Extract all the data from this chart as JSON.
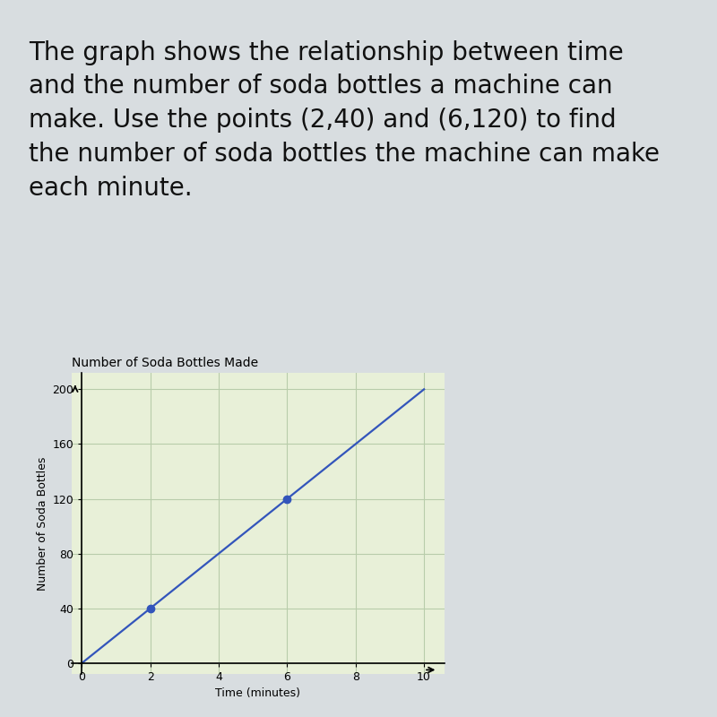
{
  "title_text": "The graph shows the relationship between time\nand the number of soda bottles a machine can\nmake. Use the points (2,40) and (6,120) to find\nthe number of soda bottles the machine can make\neach minute.",
  "chart_title": "Number of Soda Bottles Made",
  "xlabel": "Time (minutes)",
  "ylabel": "Number of Soda Bottles",
  "xlim": [
    0,
    10
  ],
  "ylim": [
    0,
    210
  ],
  "xticks": [
    0,
    2,
    4,
    6,
    8,
    10
  ],
  "yticks": [
    0,
    40,
    80,
    120,
    160,
    200
  ],
  "line_x": [
    0,
    10
  ],
  "line_y": [
    0,
    200
  ],
  "point1": [
    2,
    40
  ],
  "point2": [
    6,
    120
  ],
  "line_color": "#3355bb",
  "point_color": "#3355bb",
  "page_bg": "#d8dde0",
  "text_bg": "#f5f5f0",
  "chart_bg": "#e8f0d8",
  "grid_color": "#b8ccaa",
  "top_bar_color": "#a0a8b0",
  "title_fontsize": 20,
  "axis_label_fontsize": 9,
  "tick_fontsize": 9,
  "chart_title_fontsize": 10,
  "text_color": "#111111"
}
